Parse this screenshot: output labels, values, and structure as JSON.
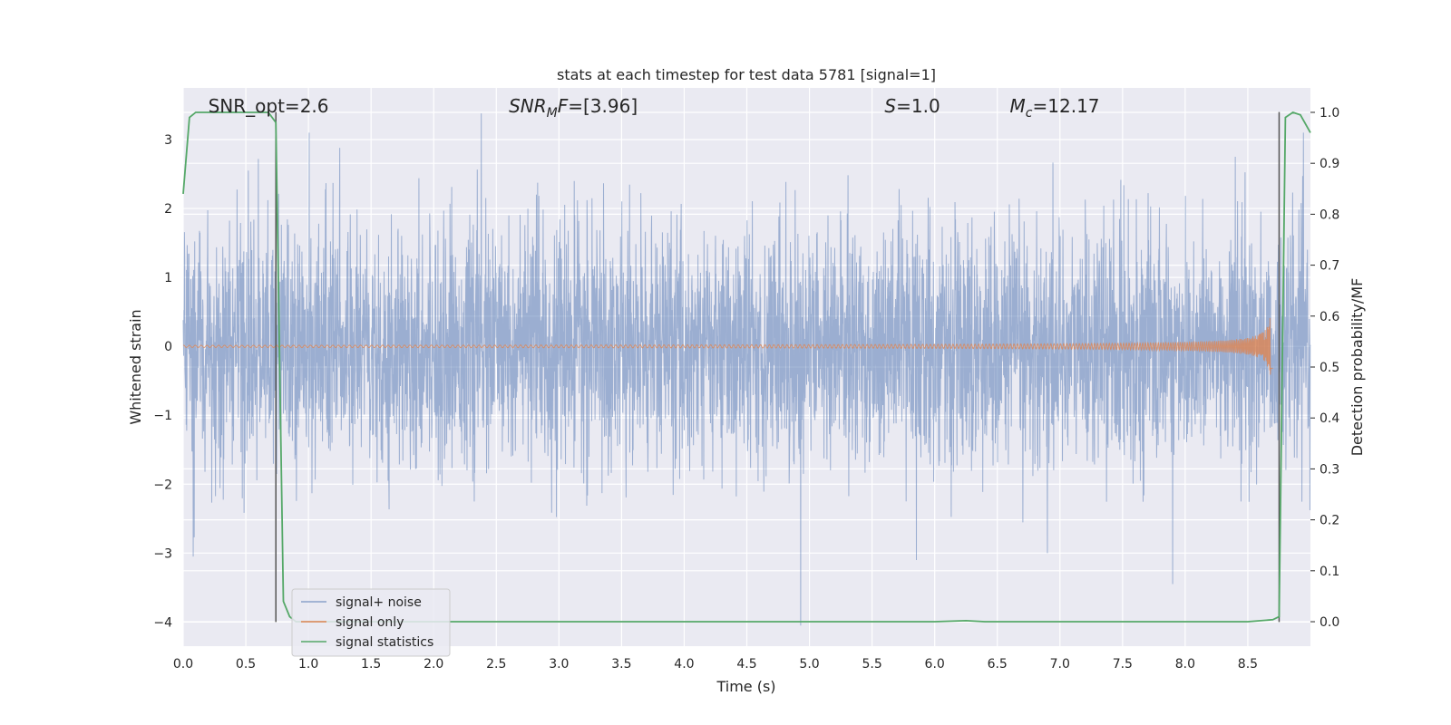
{
  "chart_data": {
    "type": "line",
    "title": "stats at each timestep for test data 5781 [signal=1]",
    "xlabel": "Time (s)",
    "ylabel": "Whitened strain",
    "y2label": "Detection probability/MF",
    "xlim": [
      0,
      9.0
    ],
    "ylim": [
      -4.35,
      3.75
    ],
    "y2lim": [
      -0.048,
      1.048
    ],
    "xticks": [
      0.0,
      0.5,
      1.0,
      1.5,
      2.0,
      2.5,
      3.0,
      3.5,
      4.0,
      4.5,
      5.0,
      5.5,
      6.0,
      6.5,
      7.0,
      7.5,
      8.0,
      8.5
    ],
    "xtick_labels": [
      "0.0",
      "0.5",
      "1.0",
      "1.5",
      "2.0",
      "2.5",
      "3.0",
      "3.5",
      "4.0",
      "4.5",
      "5.0",
      "5.5",
      "6.0",
      "6.5",
      "7.0",
      "7.5",
      "8.0",
      "8.5"
    ],
    "yticks": [
      3,
      2,
      1,
      0,
      -1,
      -2,
      -3,
      -4
    ],
    "ytick_labels": [
      "3",
      "2",
      "1",
      "0",
      "−1",
      "−2",
      "−3",
      "−4"
    ],
    "y2ticks": [
      1.0,
      0.9,
      0.8,
      0.7,
      0.6,
      0.5,
      0.4,
      0.3,
      0.2,
      0.1,
      0.0
    ],
    "y2tick_labels": [
      "1.0",
      "0.9",
      "0.8",
      "0.7",
      "0.6",
      "0.5",
      "0.4",
      "0.3",
      "0.2",
      "0.1",
      "0.0"
    ],
    "grid": true,
    "legend_position": "lower-left",
    "colors": {
      "noise": "#4c72b0",
      "signal": "#dd8452",
      "stats": "#55a868",
      "vline": "#555555",
      "background": "#eaeaf2",
      "grid": "#ffffff"
    },
    "annotations": [
      {
        "x": 0.2,
        "text_main": "SNR_opt=2.6",
        "sub": "",
        "rest": ""
      },
      {
        "x": 2.6,
        "text_main": "SNR",
        "sub": "M",
        "rest": "F=[3.96]"
      },
      {
        "x": 5.6,
        "text_main": "S",
        "sub": "",
        "rest": "=1.0"
      },
      {
        "x": 6.6,
        "text_main": "M",
        "sub": "c",
        "rest": "=12.17"
      }
    ],
    "vlines": [
      0.74,
      8.75
    ],
    "series": [
      {
        "name": "signal+ noise",
        "kind": "noise",
        "x_range": [
          0,
          9.0
        ],
        "envelope_peaks": [
          {
            "x": 0.08,
            "y": -3.05
          },
          {
            "x": 0.52,
            "y": 2.55
          },
          {
            "x": 0.6,
            "y": 2.72
          },
          {
            "x": 1.25,
            "y": 2.88
          },
          {
            "x": 2.38,
            "y": 3.38
          },
          {
            "x": 4.93,
            "y": -4.05
          },
          {
            "x": 6.9,
            "y": -3.0
          },
          {
            "x": 7.9,
            "y": -3.45
          },
          {
            "x": 8.4,
            "y": 2.75
          }
        ]
      },
      {
        "name": "signal only",
        "kind": "chirp",
        "x_range": [
          0,
          8.7
        ],
        "peak_amplitude": 0.45,
        "peak_time": 8.68
      },
      {
        "name": "signal statistics",
        "kind": "line",
        "axis": "right",
        "x": [
          0.0,
          0.05,
          0.1,
          0.2,
          0.4,
          0.6,
          0.68,
          0.74,
          0.8,
          0.85,
          0.9,
          1.5,
          3.0,
          4.5,
          6.0,
          6.25,
          6.4,
          7.0,
          8.0,
          8.5,
          8.7,
          8.75,
          8.8,
          8.86,
          8.92,
          9.0
        ],
        "y": [
          0.84,
          0.99,
          1.0,
          1.0,
          1.0,
          1.0,
          1.0,
          0.98,
          0.04,
          0.01,
          0.0,
          0.0,
          0.0,
          0.0,
          0.0,
          0.002,
          0.0,
          0.0,
          0.0,
          0.0,
          0.004,
          0.01,
          0.99,
          1.0,
          0.995,
          0.96
        ]
      }
    ]
  }
}
